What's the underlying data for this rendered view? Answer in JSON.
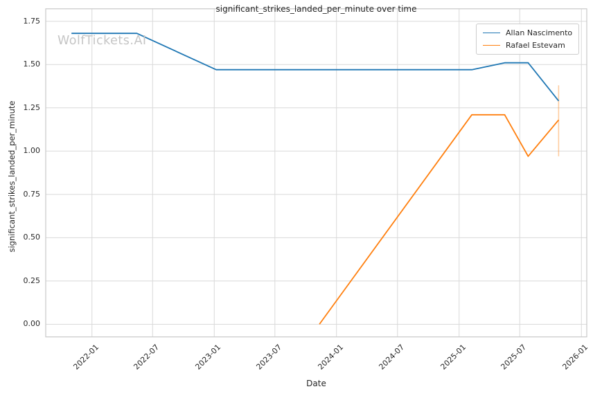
{
  "chart_data": {
    "type": "line",
    "title": "significant_strikes_landed_per_minute over time",
    "xlabel": "Date",
    "ylabel": "significant_strikes_landed_per_minute",
    "watermark": "WolfTickets.AI",
    "grid": true,
    "legend_position": "upper right",
    "colors": {
      "allan_nascimento_line": "#1f77b4",
      "rafael_estevam_line": "#ff7f0e",
      "gridline": "#d9d9d9",
      "spine": "#c9c9c9",
      "text": "#262626",
      "watermark": "#c5c5c5"
    },
    "xlim": [
      "2021-08-16",
      "2026-01-17"
    ],
    "ylim": [
      -0.073,
      1.822
    ],
    "x_ticks": [
      {
        "label": "2022-01",
        "date": "2022-01-01"
      },
      {
        "label": "2022-07",
        "date": "2022-07-01"
      },
      {
        "label": "2023-01",
        "date": "2023-01-01"
      },
      {
        "label": "2023-07",
        "date": "2023-07-01"
      },
      {
        "label": "2024-01",
        "date": "2024-01-01"
      },
      {
        "label": "2024-07",
        "date": "2024-07-01"
      },
      {
        "label": "2025-01",
        "date": "2025-01-01"
      },
      {
        "label": "2025-07",
        "date": "2025-07-01"
      },
      {
        "label": "2026-01",
        "date": "2026-01-01"
      }
    ],
    "y_ticks": [
      {
        "label": "0.00",
        "value": 0.0
      },
      {
        "label": "0.25",
        "value": 0.25
      },
      {
        "label": "0.50",
        "value": 0.5
      },
      {
        "label": "0.75",
        "value": 0.75
      },
      {
        "label": "1.00",
        "value": 1.0
      },
      {
        "label": "1.25",
        "value": 1.25
      },
      {
        "label": "1.50",
        "value": 1.5
      },
      {
        "label": "1.75",
        "value": 1.75
      }
    ],
    "series": [
      {
        "name": "Allan Nascimento",
        "color": "#1f77b4",
        "points": [
          [
            "2021-11-01",
            1.68
          ],
          [
            "2022-05-15",
            1.68
          ],
          [
            "2023-01-07",
            1.47
          ],
          [
            "2025-02-08",
            1.47
          ],
          [
            "2025-05-17",
            1.51
          ],
          [
            "2025-07-26",
            1.51
          ],
          [
            "2025-10-25",
            1.29
          ]
        ]
      },
      {
        "name": "Rafael Estevam",
        "color": "#ff7f0e",
        "points": [
          [
            "2023-11-11",
            0.0
          ],
          [
            "2025-02-08",
            1.21
          ],
          [
            "2025-05-17",
            1.21
          ],
          [
            "2025-07-26",
            0.97
          ],
          [
            "2025-10-25",
            1.18
          ]
        ],
        "error_bar": {
          "date": "2025-10-25",
          "low": 0.97,
          "high": 1.38
        }
      }
    ]
  }
}
